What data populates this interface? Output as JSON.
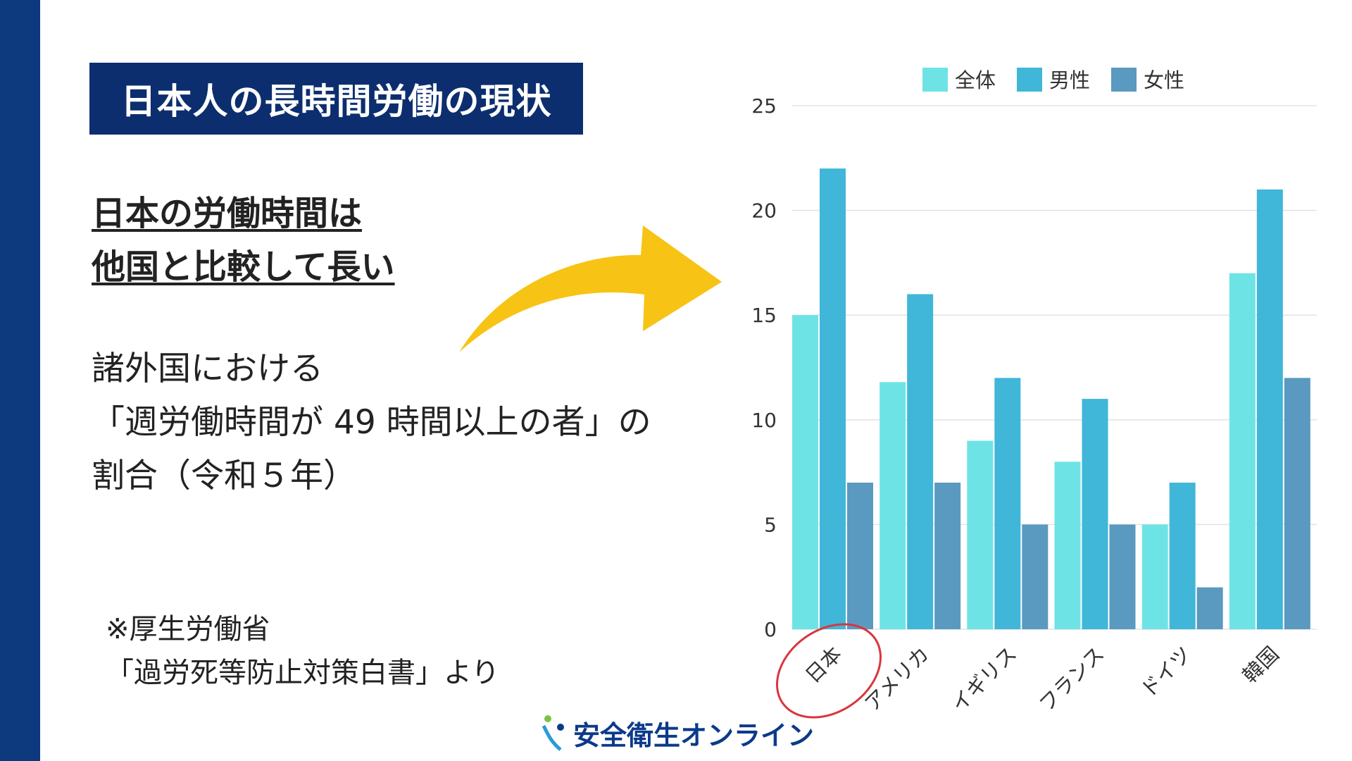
{
  "title": "日本人の長時間労働の現状",
  "headline": [
    "日本の労働時間は",
    "他国と比較して長い"
  ],
  "description": [
    "諸外国における",
    "「週労働時間が 49 時間以上の者」の",
    "割合（令和５年）"
  ],
  "source": [
    "※厚生労働省",
    "「過労死等防止対策白書」より"
  ],
  "logo": {
    "text": "安全衛生オンライン"
  },
  "colors": {
    "sidebar": "#0d3a7e",
    "arrow": "#f7c315",
    "highlight": "#d9363e"
  },
  "chart_data": {
    "type": "bar",
    "categories": [
      "日本",
      "アメリカ",
      "イギリス",
      "フランス",
      "ドイツ",
      "韓国"
    ],
    "series": [
      {
        "name": "全体",
        "color": "#6ee3e6",
        "values": [
          15,
          11.8,
          9,
          8,
          5,
          17
        ]
      },
      {
        "name": "男性",
        "color": "#40b6d8",
        "values": [
          22,
          16,
          12,
          11,
          7,
          21
        ]
      },
      {
        "name": "女性",
        "color": "#5a99c0",
        "values": [
          7,
          7,
          5,
          5,
          2,
          12
        ]
      }
    ],
    "ylim": [
      0,
      25
    ],
    "yticks": [
      0,
      5,
      10,
      15,
      20,
      25
    ],
    "grid": true,
    "legend": "top",
    "highlighted_category": "日本"
  }
}
